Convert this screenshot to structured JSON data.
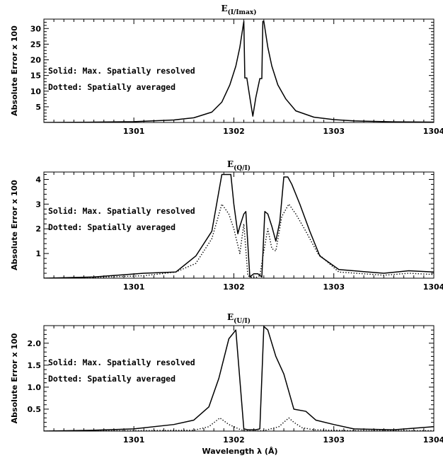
{
  "figure": {
    "xlabel": "Wavelength λ (Å)"
  },
  "chart_data": [
    {
      "type": "line",
      "title_main": "E",
      "title_sub": "(I/Imax)",
      "ylabel": "Absolute Error x 100",
      "xlim": [
        1300.1,
        1304.0
      ],
      "ylim": [
        0,
        33
      ],
      "x_ticks": [
        1301,
        1302,
        1303,
        1304
      ],
      "y_ticks": [
        5,
        10,
        15,
        20,
        25,
        30
      ],
      "legend": [
        "Solid: Max. Spatially resolved",
        "Dotted: Spatially averaged"
      ],
      "series": [
        {
          "style": "solid",
          "x": [
            1300.1,
            1300.6,
            1301.0,
            1301.4,
            1301.6,
            1301.78,
            1301.88,
            1301.96,
            1302.02,
            1302.06,
            1302.1,
            1302.11,
            1302.13,
            1302.16,
            1302.19,
            1302.22,
            1302.26,
            1302.28,
            1302.29,
            1302.3,
            1302.34,
            1302.38,
            1302.44,
            1302.52,
            1302.62,
            1302.8,
            1303.0,
            1303.2,
            1303.6,
            1304.0
          ],
          "y": [
            0.0,
            0.1,
            0.25,
            0.8,
            1.5,
            3.3,
            6.5,
            12.0,
            18.0,
            24.0,
            32.3,
            14.2,
            14.2,
            8.0,
            2.0,
            8.0,
            14.0,
            14.0,
            32.3,
            32.3,
            24.0,
            18.0,
            12.0,
            7.5,
            3.7,
            1.7,
            0.9,
            0.5,
            0.2,
            0.1
          ]
        }
      ]
    },
    {
      "type": "line",
      "title_main": "E",
      "title_sub": "(Q/I)",
      "ylabel": "Absolute Error x 100",
      "xlim": [
        1300.1,
        1304.0
      ],
      "ylim": [
        0,
        4.3
      ],
      "x_ticks": [
        1301,
        1302,
        1303,
        1304
      ],
      "y_ticks": [
        1,
        2,
        3,
        4
      ],
      "legend": [
        "Solid: Max. Spatially resolved",
        "Dotted: Spatially averaged"
      ],
      "series": [
        {
          "style": "solid",
          "x": [
            1300.1,
            1300.6,
            1301.1,
            1301.42,
            1301.62,
            1301.78,
            1301.88,
            1301.97,
            1302.0,
            1302.04,
            1302.06,
            1302.1,
            1302.12,
            1302.16,
            1302.2,
            1302.24,
            1302.28,
            1302.31,
            1302.34,
            1302.38,
            1302.42,
            1302.46,
            1302.5,
            1302.54,
            1302.58,
            1302.66,
            1302.76,
            1302.86,
            1303.05,
            1303.5,
            1303.75,
            1304.0
          ],
          "y": [
            0.0,
            0.05,
            0.2,
            0.25,
            0.9,
            1.9,
            4.2,
            4.2,
            3.0,
            1.8,
            2.1,
            2.6,
            2.7,
            0.05,
            0.18,
            0.18,
            0.05,
            2.7,
            2.6,
            2.1,
            1.5,
            2.3,
            4.1,
            4.1,
            3.8,
            3.0,
            1.9,
            0.9,
            0.35,
            0.2,
            0.3,
            0.25
          ]
        },
        {
          "style": "dotted",
          "x": [
            1300.1,
            1300.6,
            1301.1,
            1301.42,
            1301.62,
            1301.78,
            1301.88,
            1301.95,
            1302.0,
            1302.06,
            1302.1,
            1302.14,
            1302.18,
            1302.22,
            1302.26,
            1302.3,
            1302.34,
            1302.38,
            1302.42,
            1302.48,
            1302.55,
            1302.62,
            1302.72,
            1302.84,
            1303.05,
            1303.5,
            1303.75,
            1304.0
          ],
          "y": [
            0.0,
            0.03,
            0.1,
            0.25,
            0.6,
            1.6,
            3.0,
            2.6,
            2.0,
            1.0,
            2.2,
            0.1,
            0.03,
            0.03,
            0.1,
            1.1,
            2.0,
            1.2,
            1.1,
            2.5,
            3.0,
            2.6,
            1.9,
            1.0,
            0.25,
            0.12,
            0.2,
            0.15
          ]
        }
      ]
    },
    {
      "type": "line",
      "title_main": "E",
      "title_sub": "(U/I)",
      "ylabel": "Absolute Error x 100",
      "xlim": [
        1300.1,
        1304.0
      ],
      "ylim": [
        0,
        2.4
      ],
      "x_ticks": [
        1301,
        1302,
        1303,
        1304
      ],
      "y_ticks": [
        0.5,
        1.0,
        1.5,
        2.0
      ],
      "legend": [
        "Solid: Max. Spatially resolved",
        "Dotted: Spatially averaged"
      ],
      "series": [
        {
          "style": "solid",
          "x": [
            1300.1,
            1300.6,
            1301.0,
            1301.4,
            1301.6,
            1301.75,
            1301.85,
            1301.95,
            1302.02,
            1302.1,
            1302.14,
            1302.18,
            1302.22,
            1302.26,
            1302.3,
            1302.34,
            1302.42,
            1302.5,
            1302.6,
            1302.72,
            1302.82,
            1303.0,
            1303.2,
            1303.6,
            1304.0
          ],
          "y": [
            0.0,
            0.02,
            0.05,
            0.15,
            0.25,
            0.55,
            1.2,
            2.1,
            2.3,
            0.05,
            0.03,
            0.03,
            0.03,
            0.05,
            2.38,
            2.3,
            1.7,
            1.3,
            0.5,
            0.45,
            0.25,
            0.15,
            0.05,
            0.03,
            0.1
          ]
        },
        {
          "style": "dotted",
          "x": [
            1300.1,
            1301.0,
            1301.6,
            1301.75,
            1301.86,
            1301.95,
            1302.05,
            1302.1,
            1302.2,
            1302.3,
            1302.45,
            1302.55,
            1302.6,
            1302.68,
            1302.8,
            1303.2,
            1304.0
          ],
          "y": [
            0.0,
            0.01,
            0.02,
            0.1,
            0.3,
            0.15,
            0.05,
            0.01,
            0.0,
            0.01,
            0.1,
            0.3,
            0.2,
            0.08,
            0.03,
            0.01,
            0.01
          ]
        }
      ]
    }
  ]
}
